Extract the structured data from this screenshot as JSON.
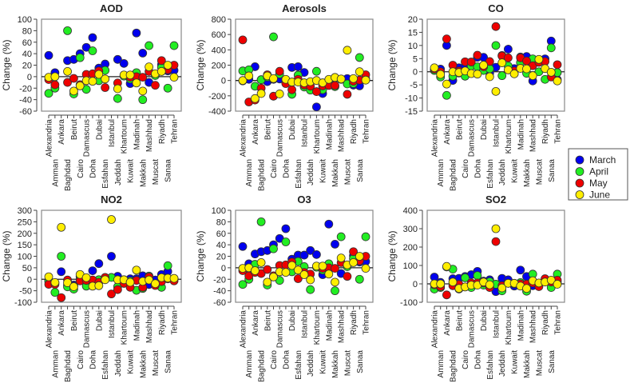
{
  "legend": {
    "entries": [
      {
        "label": "March",
        "color": "#0000ee"
      },
      {
        "label": "April",
        "color": "#22ee22"
      },
      {
        "label": "May",
        "color": "#ee0000"
      },
      {
        "label": "June",
        "color": "#ffee00"
      }
    ]
  },
  "chart_data": [
    {
      "type": "scatter",
      "title": "AOD",
      "ylabel": "Change (%)",
      "ylim": [
        -60,
        100
      ],
      "yticks": [
        "-60",
        "-40",
        "-20",
        "0",
        "20",
        "40",
        "60",
        "80",
        "100"
      ],
      "categories": [
        "Alexandria",
        "Amman",
        "Ankara",
        "Baghdad",
        "Beirut",
        "Cairo",
        "Damascus",
        "Doha",
        "Dubai",
        "Esfahan",
        "Istanbul",
        "Jeddah",
        "Khartoum",
        "Kuwait",
        "Madinah",
        "Makkah",
        "Mashhad",
        "Muscat",
        "Riyadh",
        "Sanaa",
        "Tehran"
      ],
      "series": [
        {
          "name": "March",
          "values": [
            37,
            7,
            null,
            28,
            30,
            40,
            51,
            68,
            15,
            22,
            null,
            30,
            23,
            -12,
            76,
            41,
            -10,
            null,
            21,
            10,
            11
          ]
        },
        {
          "name": "April",
          "values": [
            -29,
            -20,
            null,
            80,
            -30,
            33,
            -22,
            45,
            -7,
            11,
            null,
            -38,
            1,
            -4,
            7,
            -40,
            54,
            2,
            16,
            -20,
            54
          ]
        },
        {
          "name": "May",
          "values": [
            -5,
            -14,
            null,
            -10,
            -3,
            -14,
            4,
            5,
            10,
            -19,
            null,
            -11,
            null,
            -1,
            0,
            -1,
            9,
            -15,
            28,
            12,
            20
          ]
        },
        {
          "name": "June",
          "values": [
            -1,
            0,
            null,
            9,
            -25,
            -16,
            -7,
            -8,
            4,
            -4,
            null,
            -21,
            3,
            3,
            -11,
            -25,
            17,
            5,
            9,
            20,
            -1
          ]
        }
      ]
    },
    {
      "type": "scatter",
      "title": "Aerosols",
      "ylabel": "Change (%)",
      "ylim": [
        -400,
        800
      ],
      "yticks": [
        "-400",
        "-200",
        "0",
        "200",
        "400",
        "600",
        "800"
      ],
      "categories": [
        "Alexandria",
        "Amman",
        "Ankara",
        "Baghdad",
        "Beirut",
        "Cairo",
        "Damascus",
        "Doha",
        "Dubai",
        "Esfahan",
        "Istanbul",
        "Jeddah",
        "Khartoum",
        "Kuwait",
        "Madinah",
        "Makkah",
        "Mashhad",
        "Muscat",
        "Riyadh",
        "Sanaa",
        "Tehran"
      ],
      "series": [
        {
          "name": "March",
          "values": [
            -5,
            15,
            180,
            10,
            -15,
            15,
            20,
            -20,
            170,
            180,
            105,
            null,
            -345,
            -170,
            -25,
            35,
            15,
            25,
            -60,
            -70,
            20
          ]
        },
        {
          "name": "April",
          "values": [
            125,
            140,
            -75,
            10,
            45,
            570,
            85,
            null,
            -180,
            70,
            -85,
            -125,
            120,
            -120,
            null,
            -80,
            15,
            -45,
            -40,
            300,
            null
          ]
        },
        {
          "name": "May",
          "values": [
            530,
            -280,
            -255,
            -100,
            75,
            -205,
            120,
            -40,
            -120,
            15,
            -60,
            -75,
            -145,
            -70,
            -65,
            -65,
            null,
            -180,
            -10,
            5,
            75
          ]
        },
        {
          "name": "June",
          "values": [
            0,
            60,
            -235,
            -170,
            60,
            25,
            -175,
            15,
            -20,
            -20,
            -30,
            -15,
            0,
            -30,
            15,
            40,
            20,
            395,
            25,
            115,
            5
          ]
        }
      ]
    },
    {
      "type": "scatter",
      "title": "CO",
      "ylabel": "Change (%)",
      "ylim": [
        -15,
        20
      ],
      "yticks": [
        "-15",
        "-10",
        "-5",
        "0",
        "5",
        "10",
        "15",
        "20"
      ],
      "categories": [
        "Alexandria",
        "Amman",
        "Ankara",
        "Baghdad",
        "Beirut",
        "Cairo",
        "Damascus",
        "Doha",
        "Dubai",
        "Esfahan",
        "Istanbul",
        "Jeddah",
        "Khartoum",
        "Kuwait",
        "Madinah",
        "Makkah",
        "Mashhad",
        "Muscat",
        "Riyadh",
        "Sanaa",
        "Tehran"
      ],
      "series": [
        {
          "name": "March",
          "values": [
            0.5,
            1,
            10,
            -3.3,
            1.5,
            2,
            null,
            5.5,
            5.5,
            -0.5,
            1.7,
            6.2,
            8.6,
            1.2,
            5.6,
            5.8,
            -3.5,
            3.6,
            4.9,
            11.7,
            -3
          ]
        },
        {
          "name": "April",
          "values": [
            0.5,
            -2,
            -9,
            -1.7,
            -0.5,
            -1.7,
            2.2,
            1.9,
            0.5,
            1.1,
            10,
            -1.5,
            2.2,
            null,
            3.5,
            -0.6,
            4.9,
            0,
            -2.9,
            9.1,
            -0.3
          ]
        },
        {
          "name": "May",
          "values": [
            1,
            0,
            12.5,
            2.5,
            0.3,
            3.8,
            3.7,
            6.3,
            1.9,
            3.9,
            17.2,
            6,
            5.3,
            0.3,
            5.3,
            4.1,
            2.3,
            3.6,
            3.9,
            -2,
            2.7
          ]
        },
        {
          "name": "June",
          "values": [
            1.5,
            -1,
            -4.7,
            0,
            -0.3,
            0.3,
            -0.7,
            -0.9,
            2.5,
            -1.9,
            -7.5,
            3.4,
            0.7,
            -0.8,
            1.3,
            1.1,
            -1.5,
            4.7,
            1.2,
            -0.2,
            -3.5
          ]
        }
      ]
    },
    {
      "type": "scatter",
      "title": "NO2",
      "ylabel": "Change (%)",
      "ylim": [
        -100,
        300
      ],
      "yticks": [
        "-100",
        "-50",
        "0",
        "50",
        "100",
        "150",
        "200",
        "250",
        "300"
      ],
      "categories": [
        "Alexandria",
        "Amman",
        "Ankara",
        "Baghdad",
        "Beirut",
        "Cairo",
        "Damascus",
        "Doha",
        "Dubai",
        "Esfahan",
        "Istanbul",
        "Jeddah",
        "Khartoum",
        "Kuwait",
        "Madinah",
        "Makkah",
        "Mashhad",
        "Muscat",
        "Riyadh",
        "Sanaa",
        "Tehran"
      ],
      "series": [
        {
          "name": "March",
          "values": [
            -5,
            -15,
            33,
            -25,
            -25,
            12,
            null,
            37,
            68,
            null,
            100,
            13,
            null,
            2,
            2,
            15,
            -23,
            -3,
            21,
            34,
            0
          ]
        },
        {
          "name": "April",
          "values": [
            -10,
            -57,
            100,
            -33,
            -43,
            0,
            -30,
            -5,
            -2,
            7,
            8,
            -32,
            -15,
            -8,
            -48,
            -40,
            14,
            -25,
            -35,
            59,
            3
          ]
        },
        {
          "name": "May",
          "values": [
            -22,
            -22,
            -80,
            -3,
            -30,
            -7,
            -5,
            -3,
            -13,
            8,
            -64,
            -45,
            -18,
            -35,
            -5,
            -35,
            10,
            -27,
            -10,
            2,
            -7
          ]
        },
        {
          "name": "June",
          "values": [
            11,
            -14,
            226,
            -15,
            -32,
            21,
            7,
            -30,
            -28,
            -2,
            260,
            -2,
            -2,
            -13,
            40,
            -9,
            -3,
            -19,
            7,
            5,
            4
          ]
        }
      ]
    },
    {
      "type": "scatter",
      "title": "O3",
      "ylabel": "Change (%)",
      "ylim": [
        -60,
        100
      ],
      "yticks": [
        "-60",
        "-40",
        "-20",
        "0",
        "20",
        "40",
        "60",
        "80",
        "100"
      ],
      "categories": [
        "Alexandria",
        "Amman",
        "Ankara",
        "Baghdad",
        "Beirut",
        "Cairo",
        "Damascus",
        "Doha",
        "Dubai",
        "Esfahan",
        "Istanbul",
        "Jeddah",
        "Khartoum",
        "Kuwait",
        "Madinah",
        "Makkah",
        "Mashhad",
        "Muscat",
        "Riyadh",
        "Sanaa",
        "Tehran"
      ],
      "series": [
        {
          "name": "March",
          "values": [
            37,
            7,
            24,
            28,
            30,
            40,
            51,
            68,
            15,
            22,
            22,
            30,
            23,
            -12,
            76,
            41,
            -10,
            null,
            21,
            10,
            11
          ]
        },
        {
          "name": "April",
          "values": [
            -29,
            -20,
            6,
            80,
            -30,
            33,
            -22,
            45,
            -7,
            11,
            2,
            -38,
            1,
            -4,
            7,
            -40,
            54,
            2,
            16,
            -20,
            54
          ]
        },
        {
          "name": "May",
          "values": [
            -5,
            -14,
            -8,
            -10,
            -3,
            -14,
            4,
            5,
            10,
            -19,
            -8,
            -11,
            null,
            -1,
            0,
            -1,
            9,
            -15,
            28,
            12,
            20
          ]
        },
        {
          "name": "June",
          "values": [
            -1,
            0,
            -5,
            9,
            -25,
            -16,
            -7,
            -8,
            4,
            -4,
            -12,
            -21,
            3,
            3,
            -11,
            -25,
            17,
            5,
            9,
            20,
            -1
          ]
        }
      ]
    },
    {
      "type": "scatter",
      "title": "SO2",
      "ylabel": "Change (%)",
      "ylim": [
        -100,
        400
      ],
      "yticks": [
        "-100",
        "0",
        "100",
        "200",
        "300",
        "400"
      ],
      "categories": [
        "Alexandria",
        "Amman",
        "Ankara",
        "Baghdad",
        "Beirut",
        "Cairo",
        "Damascus",
        "Doha",
        "Dubai",
        "Esfahan",
        "Istanbul",
        "Jeddah",
        "Khartoum",
        "Kuwait",
        "Madinah",
        "Makkah",
        "Mashhad",
        "Muscat",
        "Riyadh",
        "Sanaa",
        "Tehran"
      ],
      "series": [
        {
          "name": "March",
          "values": [
            37,
            8,
            null,
            28,
            30,
            40,
            50,
            68,
            15,
            22,
            -42,
            30,
            22,
            -12,
            75,
            40,
            -10,
            null,
            20,
            10,
            10
          ]
        },
        {
          "name": "April",
          "values": [
            -28,
            -20,
            92,
            80,
            -28,
            33,
            -20,
            45,
            -7,
            12,
            -2,
            -38,
            3,
            0,
            7,
            -40,
            53,
            null,
            15,
            -20,
            53
          ]
        },
        {
          "name": "May",
          "values": [
            -5,
            -15,
            -60,
            -10,
            -3,
            null,
            5,
            5,
            5,
            -20,
            230,
            -10,
            null,
            0,
            0,
            -2,
            5,
            -15,
            28,
            10,
            20
          ]
        },
        {
          "name": "June",
          "values": [
            0,
            0,
            95,
            10,
            -25,
            -17,
            -7,
            -7,
            10,
            -5,
            300,
            -22,
            3,
            3,
            -12,
            -25,
            17,
            5,
            10,
            20,
            -2
          ]
        }
      ]
    }
  ]
}
